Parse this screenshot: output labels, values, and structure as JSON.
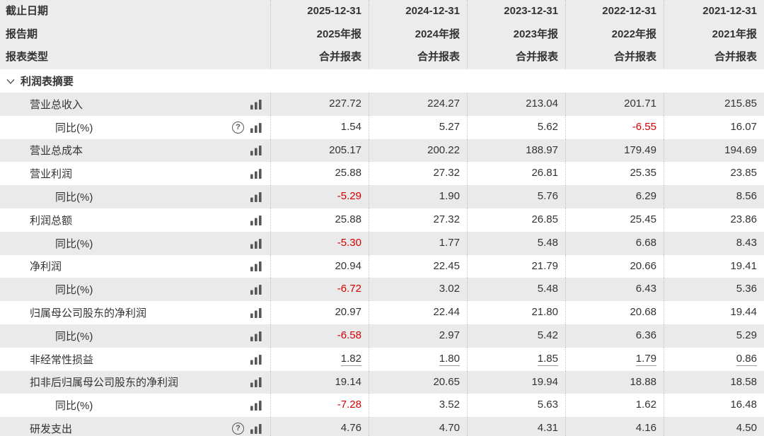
{
  "header": {
    "row_labels": [
      "截止日期",
      "报告期",
      "报表类型"
    ],
    "columns": [
      {
        "date": "2025-12-31",
        "period": "2025年报",
        "type": "合并报表"
      },
      {
        "date": "2024-12-31",
        "period": "2024年报",
        "type": "合并报表"
      },
      {
        "date": "2023-12-31",
        "period": "2023年报",
        "type": "合并报表"
      },
      {
        "date": "2022-12-31",
        "period": "2022年报",
        "type": "合并报表"
      },
      {
        "date": "2021-12-31",
        "period": "2021年报",
        "type": "合并报表"
      }
    ]
  },
  "section": {
    "label": "利润表摘要"
  },
  "rows": [
    {
      "label": "营业总收入",
      "indent": 1,
      "icons": [
        "bar-chart"
      ],
      "values": [
        "227.72",
        "224.27",
        "213.04",
        "201.71",
        "215.85"
      ]
    },
    {
      "label": "同比(%)",
      "indent": 2,
      "icons": [
        "question-circle",
        "bar-chart"
      ],
      "values": [
        "1.54",
        "5.27",
        "5.62",
        "-6.55",
        "16.07"
      ]
    },
    {
      "label": "营业总成本",
      "indent": 1,
      "icons": [
        "bar-chart"
      ],
      "values": [
        "205.17",
        "200.22",
        "188.97",
        "179.49",
        "194.69"
      ]
    },
    {
      "label": "营业利润",
      "indent": 1,
      "icons": [
        "bar-chart"
      ],
      "values": [
        "25.88",
        "27.32",
        "26.81",
        "25.35",
        "23.85"
      ]
    },
    {
      "label": "同比(%)",
      "indent": 2,
      "icons": [
        "bar-chart"
      ],
      "values": [
        "-5.29",
        "1.90",
        "5.76",
        "6.29",
        "8.56"
      ]
    },
    {
      "label": "利润总额",
      "indent": 1,
      "icons": [
        "bar-chart"
      ],
      "values": [
        "25.88",
        "27.32",
        "26.85",
        "25.45",
        "23.86"
      ]
    },
    {
      "label": "同比(%)",
      "indent": 2,
      "icons": [
        "bar-chart"
      ],
      "values": [
        "-5.30",
        "1.77",
        "5.48",
        "6.68",
        "8.43"
      ]
    },
    {
      "label": "净利润",
      "indent": 1,
      "icons": [
        "bar-chart"
      ],
      "values": [
        "20.94",
        "22.45",
        "21.79",
        "20.66",
        "19.41"
      ]
    },
    {
      "label": "同比(%)",
      "indent": 2,
      "icons": [
        "bar-chart"
      ],
      "values": [
        "-6.72",
        "3.02",
        "5.48",
        "6.43",
        "5.36"
      ]
    },
    {
      "label": "归属母公司股东的净利润",
      "indent": 1,
      "icons": [
        "bar-chart"
      ],
      "values": [
        "20.97",
        "22.44",
        "21.80",
        "20.68",
        "19.44"
      ]
    },
    {
      "label": "同比(%)",
      "indent": 2,
      "icons": [
        "bar-chart"
      ],
      "values": [
        "-6.58",
        "2.97",
        "5.42",
        "6.36",
        "5.29"
      ]
    },
    {
      "label": "非经常性损益",
      "indent": 1,
      "icons": [
        "bar-chart"
      ],
      "underline": true,
      "values": [
        "1.82",
        "1.80",
        "1.85",
        "1.79",
        "0.86"
      ]
    },
    {
      "label": "扣非后归属母公司股东的净利润",
      "indent": 1,
      "icons": [
        "bar-chart"
      ],
      "values": [
        "19.14",
        "20.65",
        "19.94",
        "18.88",
        "18.58"
      ]
    },
    {
      "label": "同比(%)",
      "indent": 2,
      "icons": [
        "bar-chart"
      ],
      "values": [
        "-7.28",
        "3.52",
        "5.63",
        "1.62",
        "16.48"
      ]
    },
    {
      "label": "研发支出",
      "indent": 1,
      "icons": [
        "question-circle",
        "bar-chart"
      ],
      "values": [
        "4.76",
        "4.70",
        "4.31",
        "4.16",
        "4.50"
      ]
    }
  ],
  "icons": {
    "question_glyph": "?"
  },
  "colors": {
    "negative_value": "#d60000",
    "shaded_row_bg": "#eaeaea",
    "header_bg": "#ececec",
    "text": "#333333",
    "icon": "#565656",
    "dotted_separator": "#c3c3c3"
  }
}
